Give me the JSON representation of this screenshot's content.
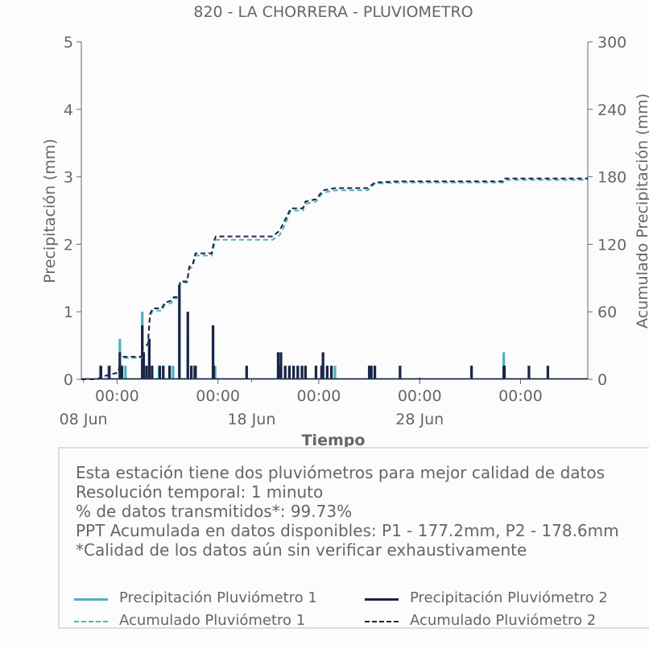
{
  "chart_data": {
    "type": "bar+line",
    "title": "820 - LA CHORRERA - PLUVIOMETRO",
    "xlabel": "Tiempo",
    "ylabel_left": "Precipitación (mm)",
    "ylabel_right": "Acumulado Precipitación (mm)",
    "ylim_left": [
      0,
      5
    ],
    "ylim_right": [
      0,
      300
    ],
    "yticks_left": [
      "0",
      "1",
      "2",
      "3",
      "4",
      "5"
    ],
    "yticks_right": [
      "0",
      "60",
      "120",
      "180",
      "240",
      "300"
    ],
    "xlim": [
      "2024-06-07T21:00",
      "2024-07-08T00:00"
    ],
    "xticks_time": [
      {
        "x": "2024-06-10T00:00",
        "label": "00:00"
      },
      {
        "x": "2024-06-16T00:00",
        "label": "00:00"
      },
      {
        "x": "2024-06-22T00:00",
        "label": "00:00"
      },
      {
        "x": "2024-06-28T00:00",
        "label": "00:00"
      },
      {
        "x": "2024-07-04T00:00",
        "label": "00:00"
      }
    ],
    "xticks_date": [
      {
        "x": "2024-06-08T00:00",
        "label": "08 Jun"
      },
      {
        "x": "2024-06-18T00:00",
        "label": "18 Jun"
      },
      {
        "x": "2024-06-28T00:00",
        "label": "28 Jun"
      }
    ],
    "grid": false,
    "series": [
      {
        "name": "Precipitación Pluviómetro 1",
        "kind": "bar",
        "color": "#4fb1bd",
        "points": [
          [
            "2024-06-09T00:00",
            0.2
          ],
          [
            "2024-06-09T12:00",
            0.2
          ],
          [
            "2024-06-10T04:00",
            0.6
          ],
          [
            "2024-06-10T07:00",
            0.2
          ],
          [
            "2024-06-10T12:00",
            0.2
          ],
          [
            "2024-06-11T12:00",
            1.0
          ],
          [
            "2024-06-11T14:00",
            0.4
          ],
          [
            "2024-06-11T18:00",
            0.2
          ],
          [
            "2024-06-11T22:00",
            0.6
          ],
          [
            "2024-06-12T02:00",
            0.2
          ],
          [
            "2024-06-12T12:00",
            0.2
          ],
          [
            "2024-06-12T18:00",
            0.2
          ],
          [
            "2024-06-13T03:00",
            0.2
          ],
          [
            "2024-06-13T08:00",
            0.2
          ],
          [
            "2024-06-13T17:00",
            1.4
          ],
          [
            "2024-06-14T05:00",
            0.6
          ],
          [
            "2024-06-14T10:00",
            0.2
          ],
          [
            "2024-06-14T15:00",
            0.2
          ],
          [
            "2024-06-14T16:00",
            0.2
          ],
          [
            "2024-06-15T17:00",
            0.8
          ],
          [
            "2024-06-15T18:00",
            0.2
          ],
          [
            "2024-06-15T20:00",
            0.2
          ],
          [
            "2024-06-17T17:00",
            0.2
          ],
          [
            "2024-06-19T14:00",
            0.4
          ],
          [
            "2024-06-19T16:00",
            0.2
          ],
          [
            "2024-06-19T18:00",
            0.4
          ],
          [
            "2024-06-20T00:00",
            0.2
          ],
          [
            "2024-06-20T06:00",
            0.2
          ],
          [
            "2024-06-20T12:00",
            0.2
          ],
          [
            "2024-06-20T18:00",
            0.2
          ],
          [
            "2024-06-21T00:00",
            0.2
          ],
          [
            "2024-06-21T05:00",
            0.2
          ],
          [
            "2024-06-21T20:00",
            0.2
          ],
          [
            "2024-06-22T04:00",
            0.2
          ],
          [
            "2024-06-22T06:00",
            0.4
          ],
          [
            "2024-06-22T12:00",
            0.2
          ],
          [
            "2024-06-22T18:00",
            0.2
          ],
          [
            "2024-06-22T23:00",
            0.2
          ],
          [
            "2024-06-25T00:00",
            0.2
          ],
          [
            "2024-06-25T03:00",
            0.2
          ],
          [
            "2024-06-25T08:00",
            0.2
          ],
          [
            "2024-06-26T20:00",
            0.2
          ],
          [
            "2024-07-01T02:00",
            0.2
          ],
          [
            "2024-07-03T00:00",
            0.4
          ],
          [
            "2024-07-03T01:00",
            0.2
          ],
          [
            "2024-07-04T12:00",
            0.2
          ]
        ]
      },
      {
        "name": "Precipitación Pluviómetro 2",
        "kind": "bar",
        "color": "#1c2446",
        "points": [
          [
            "2024-06-09T01:00",
            0.2
          ],
          [
            "2024-06-09T13:00",
            0.2
          ],
          [
            "2024-06-10T04:00",
            0.4
          ],
          [
            "2024-06-10T07:00",
            0.2
          ],
          [
            "2024-06-11T12:00",
            0.8
          ],
          [
            "2024-06-11T14:00",
            0.4
          ],
          [
            "2024-06-11T18:00",
            0.2
          ],
          [
            "2024-06-11T22:00",
            0.6
          ],
          [
            "2024-06-12T02:00",
            0.2
          ],
          [
            "2024-06-12T13:00",
            0.2
          ],
          [
            "2024-06-12T18:00",
            0.2
          ],
          [
            "2024-06-13T03:00",
            0.2
          ],
          [
            "2024-06-13T17:00",
            1.4
          ],
          [
            "2024-06-14T05:00",
            1.0
          ],
          [
            "2024-06-14T10:00",
            0.2
          ],
          [
            "2024-06-14T15:00",
            0.2
          ],
          [
            "2024-06-14T16:00",
            0.2
          ],
          [
            "2024-06-15T17:00",
            0.8
          ],
          [
            "2024-06-15T18:00",
            0.2
          ],
          [
            "2024-06-17T17:00",
            0.2
          ],
          [
            "2024-06-19T14:00",
            0.4
          ],
          [
            "2024-06-19T16:00",
            0.2
          ],
          [
            "2024-06-19T18:00",
            0.4
          ],
          [
            "2024-06-20T00:00",
            0.2
          ],
          [
            "2024-06-20T06:00",
            0.2
          ],
          [
            "2024-06-20T12:00",
            0.2
          ],
          [
            "2024-06-20T18:00",
            0.2
          ],
          [
            "2024-06-21T00:00",
            0.2
          ],
          [
            "2024-06-21T05:00",
            0.2
          ],
          [
            "2024-06-21T20:00",
            0.2
          ],
          [
            "2024-06-22T04:00",
            0.2
          ],
          [
            "2024-06-22T06:00",
            0.4
          ],
          [
            "2024-06-22T12:00",
            0.2
          ],
          [
            "2024-06-22T18:00",
            0.2
          ],
          [
            "2024-06-25T00:00",
            0.2
          ],
          [
            "2024-06-25T03:00",
            0.2
          ],
          [
            "2024-06-25T08:00",
            0.2
          ],
          [
            "2024-06-26T20:00",
            0.2
          ],
          [
            "2024-06-28T00:00",
            0.02
          ],
          [
            "2024-07-01T02:00",
            0.2
          ],
          [
            "2024-07-03T00:00",
            0.2
          ],
          [
            "2024-07-03T01:00",
            0.2
          ],
          [
            "2024-07-04T12:00",
            0.2
          ],
          [
            "2024-07-05T15:00",
            0.2
          ]
        ]
      },
      {
        "name": "Acumulado Pluviómetro 1",
        "kind": "line-dashed",
        "axis": "right",
        "color": "#4fb1bd",
        "points": [
          [
            "2024-06-07T21:00",
            0
          ],
          [
            "2024-06-08T20:00",
            0
          ],
          [
            "2024-06-09T01:00",
            2
          ],
          [
            "2024-06-09T13:00",
            4
          ],
          [
            "2024-06-10T02:00",
            6
          ],
          [
            "2024-06-10T05:00",
            19
          ],
          [
            "2024-06-11T11:00",
            19
          ],
          [
            "2024-06-11T13:00",
            28
          ],
          [
            "2024-06-11T20:00",
            30
          ],
          [
            "2024-06-11T23:00",
            56
          ],
          [
            "2024-06-12T03:00",
            61
          ],
          [
            "2024-06-12T16:00",
            61
          ],
          [
            "2024-06-12T20:00",
            66
          ],
          [
            "2024-06-13T06:00",
            68
          ],
          [
            "2024-06-13T09:00",
            72
          ],
          [
            "2024-06-13T16:00",
            72
          ],
          [
            "2024-06-13T18:00",
            86
          ],
          [
            "2024-06-14T04:00",
            86
          ],
          [
            "2024-06-14T07:00",
            98
          ],
          [
            "2024-06-14T12:00",
            100
          ],
          [
            "2024-06-14T16:00",
            110
          ],
          [
            "2024-06-15T15:00",
            110
          ],
          [
            "2024-06-15T19:00",
            120
          ],
          [
            "2024-06-15T21:00",
            124
          ],
          [
            "2024-06-19T06:00",
            124
          ],
          [
            "2024-06-19T16:00",
            128
          ],
          [
            "2024-06-20T00:00",
            138
          ],
          [
            "2024-06-20T08:00",
            150
          ],
          [
            "2024-06-21T01:00",
            150
          ],
          [
            "2024-06-21T05:00",
            156
          ],
          [
            "2024-06-21T20:00",
            158
          ],
          [
            "2024-06-22T06:00",
            166
          ],
          [
            "2024-06-22T23:00",
            168
          ],
          [
            "2024-06-24T22:00",
            168
          ],
          [
            "2024-06-25T08:00",
            174
          ],
          [
            "2024-06-26T20:00",
            175
          ],
          [
            "2024-07-02T23:00",
            175
          ],
          [
            "2024-07-03T01:00",
            177.2
          ],
          [
            "2024-07-08T00:00",
            177.2
          ]
        ]
      },
      {
        "name": "Acumulado Pluviómetro 2",
        "kind": "line-dashed",
        "axis": "right",
        "color": "#1c2446",
        "points": [
          [
            "2024-06-07T21:00",
            0
          ],
          [
            "2024-06-08T20:00",
            0
          ],
          [
            "2024-06-09T01:00",
            2
          ],
          [
            "2024-06-09T13:00",
            4
          ],
          [
            "2024-06-10T02:00",
            6
          ],
          [
            "2024-06-10T05:00",
            20
          ],
          [
            "2024-06-11T11:00",
            20
          ],
          [
            "2024-06-11T13:00",
            29
          ],
          [
            "2024-06-11T20:00",
            31
          ],
          [
            "2024-06-11T23:00",
            58
          ],
          [
            "2024-06-12T03:00",
            63
          ],
          [
            "2024-06-12T16:00",
            63
          ],
          [
            "2024-06-12T20:00",
            68
          ],
          [
            "2024-06-13T06:00",
            70
          ],
          [
            "2024-06-13T09:00",
            73
          ],
          [
            "2024-06-13T16:00",
            73
          ],
          [
            "2024-06-13T18:00",
            87
          ],
          [
            "2024-06-14T04:00",
            87
          ],
          [
            "2024-06-14T07:00",
            100
          ],
          [
            "2024-06-14T12:00",
            102
          ],
          [
            "2024-06-14T16:00",
            112
          ],
          [
            "2024-06-15T15:00",
            112
          ],
          [
            "2024-06-15T19:00",
            124
          ],
          [
            "2024-06-15T21:00",
            127
          ],
          [
            "2024-06-19T06:00",
            127
          ],
          [
            "2024-06-19T16:00",
            132
          ],
          [
            "2024-06-20T00:00",
            142
          ],
          [
            "2024-06-20T08:00",
            152
          ],
          [
            "2024-06-21T01:00",
            152
          ],
          [
            "2024-06-21T05:00",
            158
          ],
          [
            "2024-06-21T20:00",
            160
          ],
          [
            "2024-06-22T06:00",
            168
          ],
          [
            "2024-06-22T23:00",
            170
          ],
          [
            "2024-06-24T22:00",
            170
          ],
          [
            "2024-06-25T08:00",
            175
          ],
          [
            "2024-06-26T20:00",
            176
          ],
          [
            "2024-07-02T23:00",
            176
          ],
          [
            "2024-07-03T01:00",
            178.6
          ],
          [
            "2024-07-08T00:00",
            178.6
          ]
        ]
      }
    ]
  },
  "info": {
    "line1": "Esta estación tiene dos pluviómetros para mejor calidad de datos",
    "line2": "Resolución temporal: 1 minuto",
    "line3": "% de datos transmitidos*: 99.73%",
    "line4": "PPT Acumulada en datos disponibles: P1 - 177.2mm, P2 - 178.6mm",
    "line5": "*Calidad de los datos aún sin verificar exhaustivamente"
  },
  "legend": [
    {
      "label": "Precipitación Pluviómetro 1",
      "color": "#4fb1bd",
      "style": "solid"
    },
    {
      "label": "Precipitación Pluviómetro 2",
      "color": "#1c2446",
      "style": "solid"
    },
    {
      "label": "Acumulado Pluviómetro 1",
      "color": "#4fb1bd",
      "style": "dashed"
    },
    {
      "label": "Acumulado Pluviómetro 2",
      "color": "#1c2446",
      "style": "dashed"
    }
  ]
}
